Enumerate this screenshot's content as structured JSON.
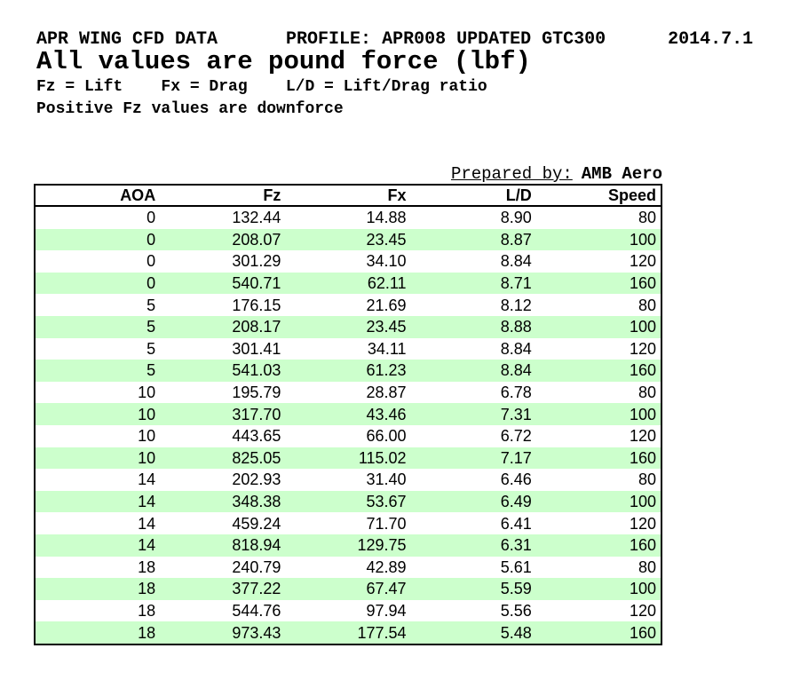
{
  "header": {
    "title": "APR WING CFD DATA",
    "profile": "PROFILE: APR008 UPDATED GTC300",
    "version": "2014.7.1",
    "subtitle": "All values are pound force (lbf)",
    "legend_parts": [
      "Fz = Lift",
      "Fx = Drag",
      "L/D = Lift/Drag ratio"
    ],
    "note": "Positive Fz values are downforce"
  },
  "prepared_by": {
    "label": "Prepared by:",
    "value": "AMB Aero"
  },
  "table": {
    "columns": [
      "AOA",
      "Fz",
      "Fx",
      "L/D",
      "Speed"
    ],
    "rows": [
      [
        "0",
        "132.44",
        "14.88",
        "8.90",
        "80"
      ],
      [
        "0",
        "208.07",
        "23.45",
        "8.87",
        "100"
      ],
      [
        "0",
        "301.29",
        "34.10",
        "8.84",
        "120"
      ],
      [
        "0",
        "540.71",
        "62.11",
        "8.71",
        "160"
      ],
      [
        "5",
        "176.15",
        "21.69",
        "8.12",
        "80"
      ],
      [
        "5",
        "208.17",
        "23.45",
        "8.88",
        "100"
      ],
      [
        "5",
        "301.41",
        "34.11",
        "8.84",
        "120"
      ],
      [
        "5",
        "541.03",
        "61.23",
        "8.84",
        "160"
      ],
      [
        "10",
        "195.79",
        "28.87",
        "6.78",
        "80"
      ],
      [
        "10",
        "317.70",
        "43.46",
        "7.31",
        "100"
      ],
      [
        "10",
        "443.65",
        "66.00",
        "6.72",
        "120"
      ],
      [
        "10",
        "825.05",
        "115.02",
        "7.17",
        "160"
      ],
      [
        "14",
        "202.93",
        "31.40",
        "6.46",
        "80"
      ],
      [
        "14",
        "348.38",
        "53.67",
        "6.49",
        "100"
      ],
      [
        "14",
        "459.24",
        "71.70",
        "6.41",
        "120"
      ],
      [
        "14",
        "818.94",
        "129.75",
        "6.31",
        "160"
      ],
      [
        "18",
        "240.79",
        "42.89",
        "5.61",
        "80"
      ],
      [
        "18",
        "377.22",
        "67.47",
        "5.59",
        "100"
      ],
      [
        "18",
        "544.76",
        "97.94",
        "5.56",
        "120"
      ],
      [
        "18",
        "973.43",
        "177.54",
        "5.48",
        "160"
      ]
    ]
  },
  "colors": {
    "row_stripe": "#ccffcc",
    "border": "#000000",
    "background": "#ffffff",
    "text": "#000000"
  }
}
